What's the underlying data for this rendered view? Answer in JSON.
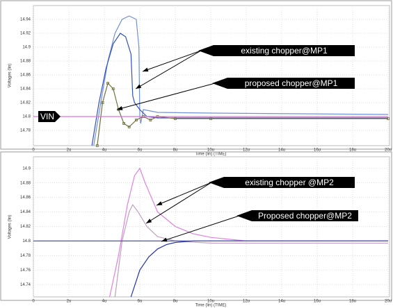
{
  "chart_data": [
    {
      "type": "line",
      "xlabel": "Time (lin) (TIME)",
      "ylabel": "Voltages (lin)",
      "xlim": [
        0,
        20
      ],
      "xticks": [
        0,
        {
          "value": 2,
          "label": "2u"
        },
        {
          "value": 4,
          "label": "4u"
        },
        {
          "value": 6,
          "label": "6u"
        },
        {
          "value": 8,
          "label": "8u"
        },
        {
          "value": 10,
          "label": "10u"
        },
        {
          "value": 12,
          "label": "12u"
        },
        {
          "value": 14,
          "label": "14u"
        },
        {
          "value": 16,
          "label": "16u"
        },
        {
          "value": 18,
          "label": "18u"
        },
        {
          "value": 20,
          "label": "20u"
        }
      ],
      "ylim": [
        14.758,
        14.96
      ],
      "yticks": [
        14.78,
        14.8,
        14.82,
        14.84,
        14.86,
        14.88,
        14.9,
        14.92,
        14.94
      ],
      "grid": true,
      "annotations": [
        "existing chopper@MP1",
        "proposed chopper@MP1",
        "VIN"
      ],
      "series": [
        {
          "color": "#7090d8",
          "markers": false,
          "x": [
            3.4,
            3.8,
            4.2,
            4.6,
            5.0,
            5.4,
            5.8,
            5.95,
            6.0,
            6.05,
            6.2,
            7,
            10,
            20
          ],
          "values": [
            14.758,
            14.82,
            14.88,
            14.92,
            14.94,
            14.945,
            14.94,
            14.9,
            14.8,
            14.79,
            14.81,
            14.806,
            14.805,
            14.803
          ]
        },
        {
          "color": "#3050c0",
          "markers": false,
          "x": [
            3.3,
            3.7,
            4.1,
            4.5,
            4.9,
            5.2,
            5.5,
            5.6,
            5.7,
            6.0,
            6.4,
            7,
            10,
            20
          ],
          "values": [
            14.758,
            14.82,
            14.87,
            14.905,
            14.92,
            14.915,
            14.89,
            14.83,
            14.82,
            14.81,
            14.8,
            14.798,
            14.798,
            14.798
          ]
        },
        {
          "color": "#707040",
          "markers": true,
          "x": [
            3.6,
            3.9,
            4.2,
            4.5,
            4.8,
            5.1,
            5.4,
            5.8,
            6.2,
            6.6,
            7,
            8,
            10,
            20
          ],
          "values": [
            14.758,
            14.82,
            14.848,
            14.84,
            14.81,
            14.79,
            14.785,
            14.795,
            14.8,
            14.795,
            14.8,
            14.797,
            14.797,
            14.797
          ]
        },
        {
          "color": "#e070e0",
          "markers": false,
          "x": [
            0,
            20
          ],
          "values": [
            14.8,
            14.8
          ]
        }
      ]
    },
    {
      "type": "line",
      "xlabel": "Time (lin) (TIME)",
      "ylabel": "Voltages (lin)",
      "xlim": [
        0,
        20
      ],
      "xticks": [
        0,
        {
          "value": 2,
          "label": "2u"
        },
        {
          "value": 4,
          "label": "4u"
        },
        {
          "value": 6,
          "label": "6u"
        },
        {
          "value": 8,
          "label": "8u"
        },
        {
          "value": 10,
          "label": "10u"
        },
        {
          "value": 12,
          "label": "12u"
        },
        {
          "value": 14,
          "label": "14u"
        },
        {
          "value": 16,
          "label": "16u"
        },
        {
          "value": 18,
          "label": "18u"
        },
        {
          "value": 20,
          "label": "20u"
        }
      ],
      "ylim": [
        14.723,
        14.916
      ],
      "yticks": [
        14.74,
        14.76,
        14.78,
        14.8,
        14.82,
        14.84,
        14.86,
        14.88,
        14.9
      ],
      "grid": true,
      "annotations": [
        "existing chopper @MP2",
        "Proposed chopper@MP2"
      ],
      "series": [
        {
          "color": "#e080e0",
          "markers": false,
          "x": [
            4.3,
            4.8,
            5.3,
            5.7,
            6.0,
            6.3,
            7,
            8,
            9,
            10,
            12,
            20
          ],
          "values": [
            14.723,
            14.78,
            14.85,
            14.89,
            14.9,
            14.88,
            14.84,
            14.82,
            14.81,
            14.805,
            14.8,
            14.8
          ]
        },
        {
          "color": "#c0a0c0",
          "markers": false,
          "x": [
            4.6,
            5.0,
            5.4,
            5.6,
            5.9,
            6.4,
            7,
            8,
            10,
            20
          ],
          "values": [
            14.723,
            14.8,
            14.84,
            14.85,
            14.84,
            14.82,
            14.806,
            14.8,
            14.797,
            14.797
          ]
        },
        {
          "color": "#2030b0",
          "markers": false,
          "x": [
            5.5,
            6.0,
            6.5,
            7,
            7.5,
            8,
            9,
            10,
            20
          ],
          "values": [
            14.723,
            14.76,
            14.778,
            14.789,
            14.795,
            14.798,
            14.8,
            14.8,
            14.8
          ]
        },
        {
          "color": "#4050e0",
          "markers": false,
          "x": [
            0,
            20
          ],
          "values": [
            14.8,
            14.8
          ]
        }
      ]
    }
  ]
}
